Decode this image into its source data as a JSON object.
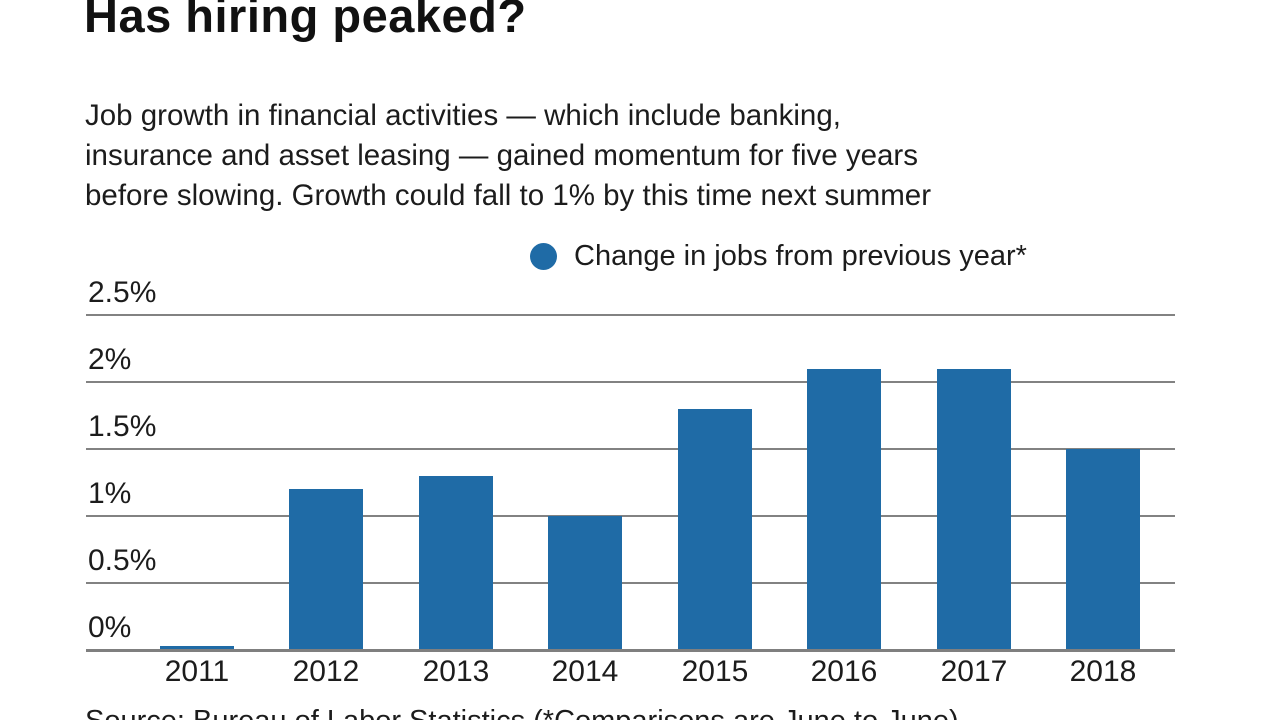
{
  "title": "Has hiring peaked?",
  "subtitle_lines": [
    "Job growth in financial activities — which include banking,",
    "insurance and asset leasing — gained momentum for five years",
    "before slowing. Growth could fall to 1% by this time next summer"
  ],
  "legend": {
    "label": "Change in jobs from previous year*"
  },
  "source": "Source: Bureau of Labor Statistics (*Comparisons are June to June)",
  "colors": {
    "bar": "#1f6ba6",
    "gridline": "#828282",
    "axis": "#7f7f7f",
    "text": "#1c1c1c"
  },
  "chart_data": {
    "type": "bar",
    "title": "Has hiring peaked?",
    "categories": [
      "2011",
      "2012",
      "2013",
      "2014",
      "2015",
      "2016",
      "2017",
      "2018"
    ],
    "values": [
      0.03,
      1.2,
      1.3,
      1.0,
      1.8,
      2.1,
      2.1,
      1.5
    ],
    "unit": "percent",
    "xlabel": "",
    "ylabel": "",
    "ylim": [
      0,
      2.5
    ],
    "yticks": [
      {
        "value": 2.5,
        "label": "2.5%"
      },
      {
        "value": 2.0,
        "label": "2%"
      },
      {
        "value": 1.5,
        "label": "1.5%"
      },
      {
        "value": 1.0,
        "label": "1%"
      },
      {
        "value": 0.5,
        "label": "0.5%"
      },
      {
        "value": 0.0,
        "label": "0%"
      }
    ],
    "legend_entries": [
      "Change in jobs from previous year*"
    ],
    "legend_position": "top",
    "grid": true
  }
}
